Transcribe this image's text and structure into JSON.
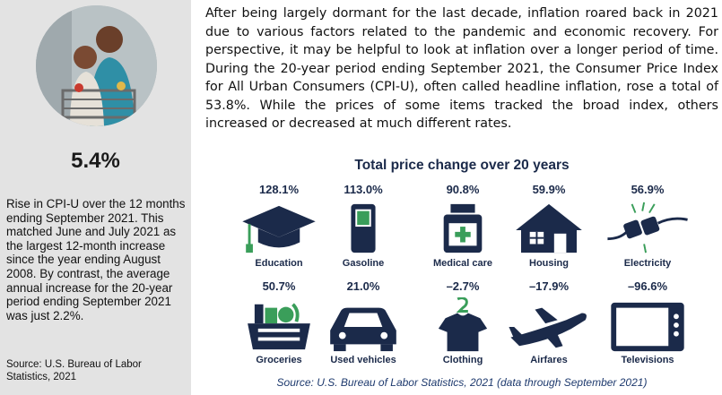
{
  "sidebar": {
    "image_alt": "mother and daughter grocery shopping",
    "headline": "5.4%",
    "body": "Rise in CPI-U over the 12 months ending September 2021. This matched June and July 2021 as the largest 12-month increase since the year ending August 2008. By contrast, the average annual increase for the 20-year period ending September 2021 was just 2.2%.",
    "source": "Source: U.S. Bureau of Labor Statistics, 2021"
  },
  "paragraph": "After being largely dormant for the last decade, inflation roared back in 2021 due to various factors related to the pandemic and economic recovery. For perspective, it may be helpful to look at inflation over a longer period of time. During the 20-year period ending September 2021, the Consumer Price Index for All Urban Consumers (CPI-U), often called headline inflation, rose a total of 53.8%. While the prices of some items tracked the broad index, others increased or decreased at much different rates.",
  "chart_data": {
    "type": "table",
    "title": "Total price change over 20 years",
    "categories": [
      "Education",
      "Gasoline",
      "Medical care",
      "Housing",
      "Electricity",
      "Groceries",
      "Used vehicles",
      "Clothing",
      "Airfares",
      "Televisions"
    ],
    "values": [
      128.1,
      113.0,
      90.8,
      59.9,
      56.9,
      50.7,
      21.0,
      -2.7,
      -17.9,
      -96.6
    ],
    "value_labels": [
      "128.1%",
      "113.0%",
      "90.8%",
      "59.9%",
      "56.9%",
      "50.7%",
      "21.0%",
      "–2.7%",
      "–17.9%",
      "–96.6%"
    ],
    "icons": [
      "graduation-cap-icon",
      "gas-pump-icon",
      "medicine-bottle-icon",
      "house-icon",
      "electric-plug-icon",
      "grocery-basket-icon",
      "car-icon",
      "shirt-icon",
      "airplane-icon",
      "television-icon"
    ],
    "source": "Source: U.S. Bureau of Labor Statistics, 2021 (data through September 2021)"
  },
  "colors": {
    "navy": "#1b2a4a",
    "accent_green": "#3a9e5a",
    "accent_red": "#d9433c",
    "sidebar_bg": "#e3e3e3"
  }
}
